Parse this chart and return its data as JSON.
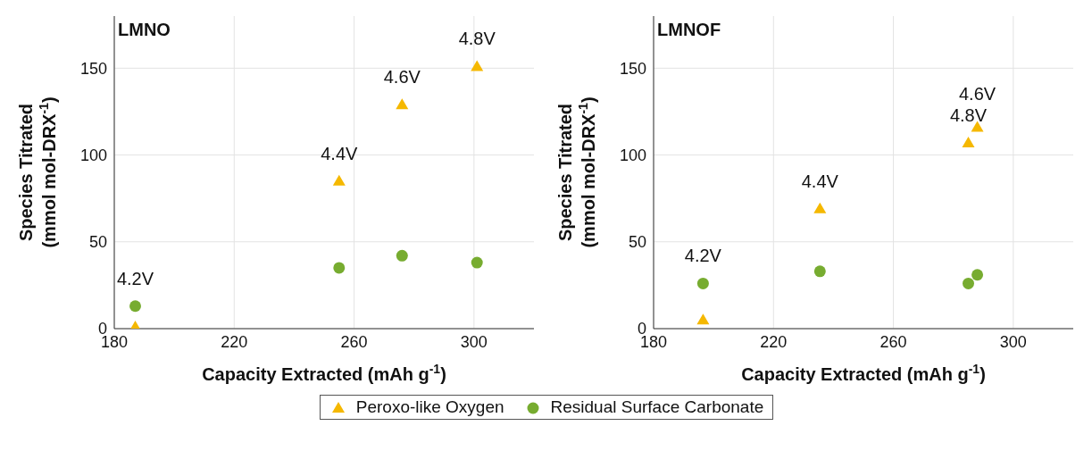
{
  "chart_data": [
    {
      "type": "scatter",
      "title": "LMNO",
      "xlabel": "Capacity Extracted (mAh g$^{-1}$)",
      "ylabel": "Species Titrated\n(mmol mol-DRX$^{-1}$)",
      "xlim": [
        180,
        320
      ],
      "xticks": [
        180,
        220,
        260,
        300
      ],
      "ylim": [
        0,
        180
      ],
      "yticks": [
        0,
        50,
        100,
        150
      ],
      "grid": true,
      "legend": "bottom",
      "series": [
        {
          "name": "Peroxo-like Oxygen",
          "color": "#f5b800",
          "marker": "triangle",
          "x": [
            187,
            255,
            276,
            301
          ],
          "values": [
            1,
            85,
            129,
            151
          ]
        },
        {
          "name": "Residual Surface Carbonate",
          "color": "#77ac30",
          "marker": "circle",
          "x": [
            187,
            255,
            276,
            301
          ],
          "values": [
            13,
            35,
            42,
            38
          ]
        }
      ],
      "annotations": [
        {
          "text": "4.2V",
          "x": 187,
          "y": 13
        },
        {
          "text": "4.4V",
          "x": 255,
          "y": 85
        },
        {
          "text": "4.6V",
          "x": 276,
          "y": 129
        },
        {
          "text": "4.8V",
          "x": 301,
          "y": 151
        }
      ]
    },
    {
      "type": "scatter",
      "title": "LMNOF",
      "xlabel": "Capacity Extracted (mAh g$^{-1}$)",
      "ylabel": "Species Titrated\n(mmol mol-DRX$^{-1}$)",
      "xlim": [
        180,
        320
      ],
      "xticks": [
        180,
        220,
        260,
        300
      ],
      "ylim": [
        0,
        180
      ],
      "yticks": [
        0,
        50,
        100,
        150
      ],
      "grid": true,
      "legend": "bottom",
      "series": [
        {
          "name": "Peroxo-like Oxygen",
          "color": "#f5b800",
          "marker": "triangle",
          "x": [
            196.5,
            235.5,
            285,
            288
          ],
          "values": [
            5,
            69,
            107,
            116
          ]
        },
        {
          "name": "Residual Surface Carbonate",
          "color": "#77ac30",
          "marker": "circle",
          "x": [
            196.5,
            235.5,
            285,
            288
          ],
          "values": [
            26,
            33,
            26,
            31
          ]
        }
      ],
      "annotations": [
        {
          "text": "4.2V",
          "x": 196.5,
          "y": 26
        },
        {
          "text": "4.4V",
          "x": 235.5,
          "y": 69
        },
        {
          "text": "4.8V",
          "x": 285,
          "y": 107
        },
        {
          "text": "4.6V",
          "x": 288,
          "y": 116
        }
      ]
    }
  ]
}
